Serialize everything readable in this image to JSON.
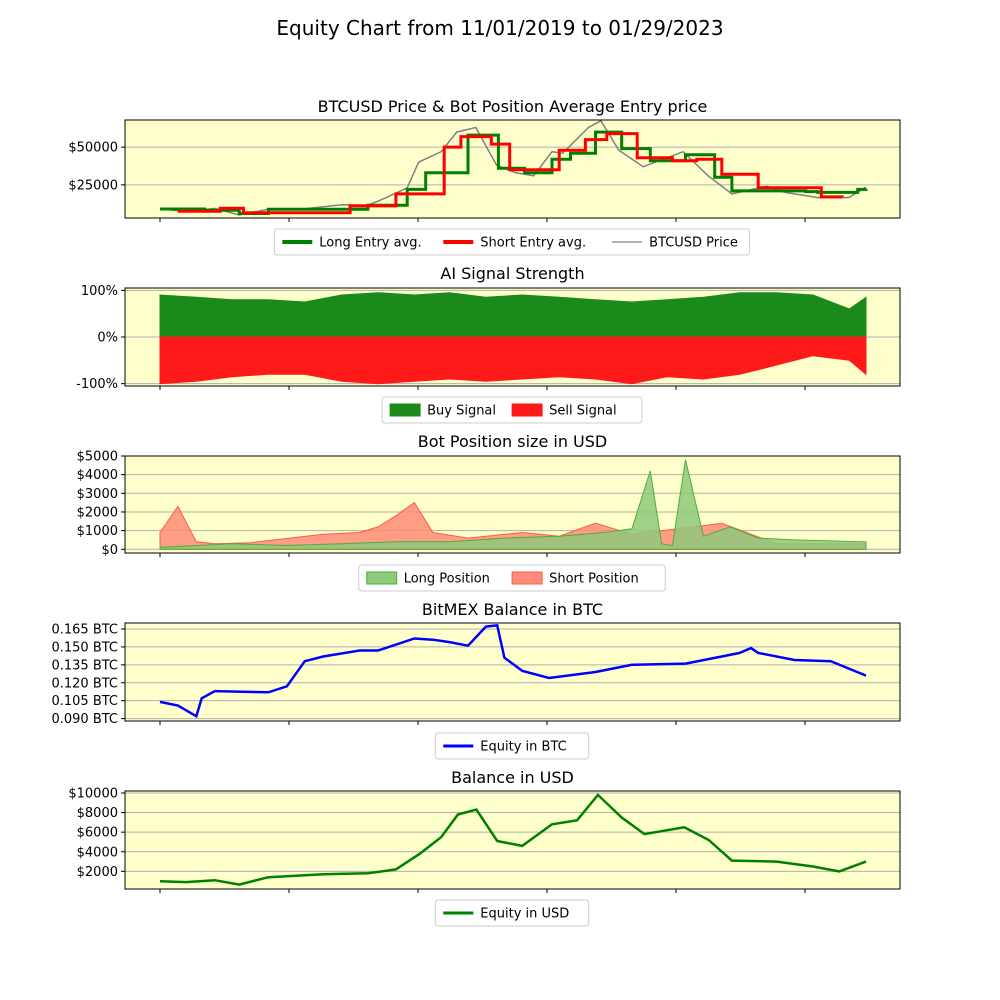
{
  "page_title": "Equity Chart from 11/01/2019 to 01/29/2023",
  "colors": {
    "panel_bg": "#ffffcc",
    "long": "#008000",
    "short": "#ff0000",
    "price": "#808080",
    "buy_fill": "#1a8a1a",
    "sell_fill": "#ff1a1a",
    "long_pos": "#8fc97a",
    "short_pos": "#ff8c78",
    "btc_equity": "#0000ff",
    "usd_equity": "#008000",
    "grid": "#b0b0b0"
  },
  "chart_data": [
    {
      "type": "line",
      "title": "BTCUSD Price & Bot Position Average Entry price",
      "xlabel": "",
      "ylabel": "",
      "x_range": [
        "11/01/2019",
        "01/29/2023"
      ],
      "ylim": [
        3000,
        68000
      ],
      "yticks": [
        25000,
        50000
      ],
      "ytick_labels": [
        "$25000",
        "$50000"
      ],
      "grid": "horizontal",
      "legend_placement": "below",
      "series": [
        {
          "name": "BTCUSD Price",
          "x": [
            "2019-11-01",
            "2019-12-15",
            "2020-02-01",
            "2020-03-13",
            "2020-05-01",
            "2020-07-01",
            "2020-09-01",
            "2020-10-15",
            "2020-11-15",
            "2020-12-20",
            "2021-01-08",
            "2021-02-15",
            "2021-03-13",
            "2021-04-14",
            "2021-05-19",
            "2021-06-20",
            "2021-07-20",
            "2021-08-20",
            "2021-09-07",
            "2021-10-20",
            "2021-11-10",
            "2021-12-10",
            "2022-01-20",
            "2022-03-28",
            "2022-05-09",
            "2022-06-18",
            "2022-08-15",
            "2022-09-15",
            "2022-11-09",
            "2022-12-31",
            "2023-01-29"
          ],
          "values": [
            9200,
            7200,
            9400,
            5000,
            8800,
            9200,
            11800,
            11500,
            16500,
            23000,
            40000,
            47000,
            60000,
            63000,
            38000,
            33000,
            31000,
            47000,
            46000,
            63000,
            67500,
            48000,
            37000,
            47000,
            31000,
            19000,
            24000,
            20000,
            16500,
            16500,
            23500
          ]
        },
        {
          "name": "Long Entry avg.",
          "x": [
            "2019-11-01",
            "2020-01-15",
            "2020-03-13",
            "2020-05-01",
            "2020-10-15",
            "2020-12-20",
            "2021-01-20",
            "2021-04-01",
            "2021-05-22",
            "2021-07-05",
            "2021-08-20",
            "2021-09-20",
            "2021-11-01",
            "2021-12-15",
            "2022-02-01",
            "2022-04-01",
            "2022-05-20",
            "2022-06-18",
            "2022-09-01",
            "2022-10-20",
            "2022-11-09",
            "2023-01-15",
            "2023-01-29"
          ],
          "values": [
            9000,
            8200,
            6000,
            8800,
            11500,
            22000,
            33000,
            58000,
            36000,
            33000,
            42000,
            46000,
            60000,
            49000,
            41000,
            45000,
            30000,
            21000,
            21000,
            20500,
            20000,
            22000,
            22500
          ]
        },
        {
          "name": "Short Entry avg.",
          "x": [
            "2019-12-01",
            "2020-02-10",
            "2020-03-20",
            "2020-09-15",
            "2020-12-01",
            "2021-02-20",
            "2021-03-20",
            "2021-05-10",
            "2021-06-10",
            "2021-09-01",
            "2021-10-15",
            "2021-11-20",
            "2022-01-10",
            "2022-03-10",
            "2022-04-20",
            "2022-06-01",
            "2022-08-01",
            "2022-11-15",
            "2022-12-20"
          ],
          "values": [
            7500,
            9500,
            6500,
            11000,
            19000,
            50000,
            57000,
            52000,
            35000,
            48000,
            55000,
            59000,
            43000,
            41000,
            42000,
            32000,
            23000,
            17000,
            16800
          ]
        }
      ]
    },
    {
      "type": "area",
      "title": "AI Signal Strength",
      "xlabel": "",
      "ylabel": "",
      "ylim": [
        -105,
        105
      ],
      "yticks": [
        -100,
        0,
        100
      ],
      "ytick_labels": [
        "-100%",
        "0%",
        "100%"
      ],
      "grid": "horizontal",
      "legend_placement": "below",
      "series": [
        {
          "name": "Buy Signal",
          "x": [
            "2019-11-01",
            "2020-01-01",
            "2020-03-01",
            "2020-05-01",
            "2020-07-01",
            "2020-09-01",
            "2020-11-01",
            "2021-01-01",
            "2021-03-01",
            "2021-05-01",
            "2021-07-01",
            "2021-09-01",
            "2021-11-01",
            "2022-01-01",
            "2022-03-01",
            "2022-05-01",
            "2022-07-01",
            "2022-09-01",
            "2022-11-01",
            "2023-01-01",
            "2023-01-29"
          ],
          "values": [
            90,
            85,
            80,
            80,
            75,
            90,
            95,
            90,
            95,
            85,
            90,
            85,
            80,
            75,
            80,
            85,
            95,
            95,
            90,
            60,
            85
          ]
        },
        {
          "name": "Sell Signal",
          "x": [
            "2019-11-01",
            "2020-01-01",
            "2020-03-01",
            "2020-05-01",
            "2020-07-01",
            "2020-09-01",
            "2020-11-01",
            "2021-01-01",
            "2021-03-01",
            "2021-05-01",
            "2021-07-01",
            "2021-09-01",
            "2021-11-01",
            "2022-01-01",
            "2022-03-01",
            "2022-05-01",
            "2022-07-01",
            "2022-09-01",
            "2022-11-01",
            "2023-01-01",
            "2023-01-29"
          ],
          "values": [
            -100,
            -95,
            -85,
            -80,
            -80,
            -95,
            -100,
            -95,
            -90,
            -95,
            -90,
            -85,
            -90,
            -100,
            -85,
            -90,
            -80,
            -60,
            -40,
            -50,
            -80
          ]
        }
      ]
    },
    {
      "type": "area",
      "title": "Bot Position size in USD",
      "xlabel": "",
      "ylabel": "",
      "ylim": [
        -200,
        5000
      ],
      "yticks": [
        0,
        1000,
        2000,
        3000,
        4000,
        5000
      ],
      "ytick_labels": [
        "$0",
        "$1000",
        "$2000",
        "$3000",
        "$4000",
        "$5000"
      ],
      "grid": "horizontal",
      "legend_placement": "below",
      "series": [
        {
          "name": "Long Position",
          "x": [
            "2019-11-01",
            "2020-03-01",
            "2020-06-01",
            "2020-09-01",
            "2020-12-01",
            "2021-03-01",
            "2021-06-01",
            "2021-09-01",
            "2021-11-15",
            "2022-01-01",
            "2022-02-01",
            "2022-02-20",
            "2022-03-10",
            "2022-04-01",
            "2022-05-01",
            "2022-06-15",
            "2022-08-01",
            "2022-10-01",
            "2023-01-29"
          ],
          "values": [
            100,
            300,
            200,
            300,
            400,
            400,
            600,
            700,
            900,
            1100,
            4200,
            300,
            200,
            4800,
            700,
            1200,
            600,
            500,
            400
          ]
        },
        {
          "name": "Short Position",
          "x": [
            "2019-11-01",
            "2019-12-01",
            "2020-01-01",
            "2020-02-01",
            "2020-04-01",
            "2020-08-01",
            "2020-10-01",
            "2020-11-01",
            "2020-12-01",
            "2021-01-01",
            "2021-02-01",
            "2021-04-01",
            "2021-07-01",
            "2021-09-01",
            "2021-11-01",
            "2022-01-01",
            "2022-04-15",
            "2022-06-01",
            "2022-09-01",
            "2022-11-01",
            "2023-01-29"
          ],
          "values": [
            900,
            2300,
            400,
            300,
            350,
            800,
            900,
            1200,
            1800,
            2500,
            900,
            600,
            900,
            700,
            1400,
            800,
            1200,
            1400,
            300,
            300,
            300
          ]
        }
      ]
    },
    {
      "type": "line",
      "title": "BitMEX Balance in BTC",
      "xlabel": "",
      "ylabel": "",
      "ylim": [
        0.088,
        0.17
      ],
      "yticks": [
        0.09,
        0.105,
        0.12,
        0.135,
        0.15,
        0.165
      ],
      "ytick_labels": [
        "0.090 BTC",
        "0.105 BTC",
        "0.120 BTC",
        "0.135 BTC",
        "0.150 BTC",
        "0.165 BTC"
      ],
      "grid": "horizontal",
      "legend_placement": "below",
      "series": [
        {
          "name": "Equity in BTC",
          "x": [
            "2019-11-01",
            "2019-12-01",
            "2020-01-01",
            "2020-01-10",
            "2020-02-01",
            "2020-05-01",
            "2020-06-01",
            "2020-07-01",
            "2020-08-01",
            "2020-10-01",
            "2020-11-01",
            "2021-01-01",
            "2021-02-01",
            "2021-03-01",
            "2021-04-01",
            "2021-05-01",
            "2021-05-20",
            "2021-06-01",
            "2021-07-01",
            "2021-08-15",
            "2021-11-01",
            "2022-01-01",
            "2022-04-01",
            "2022-06-01",
            "2022-07-01",
            "2022-07-20",
            "2022-08-01",
            "2022-10-01",
            "2022-12-01",
            "2023-01-29"
          ],
          "values": [
            0.104,
            0.101,
            0.092,
            0.107,
            0.113,
            0.112,
            0.117,
            0.138,
            0.142,
            0.147,
            0.147,
            0.157,
            0.156,
            0.154,
            0.151,
            0.167,
            0.168,
            0.141,
            0.13,
            0.124,
            0.129,
            0.135,
            0.136,
            0.142,
            0.145,
            0.149,
            0.145,
            0.139,
            0.138,
            0.126
          ]
        }
      ]
    },
    {
      "type": "line",
      "title": "Balance in USD",
      "xlabel": "",
      "ylabel": "",
      "ylim": [
        200,
        10200
      ],
      "yticks": [
        2000,
        4000,
        6000,
        8000,
        10000
      ],
      "ytick_labels": [
        "$2000",
        "$4000",
        "$6000",
        "$8000",
        "$10000"
      ],
      "grid": "horizontal",
      "legend_placement": "below",
      "series": [
        {
          "name": "Equity in USD",
          "x": [
            "2019-11-01",
            "2019-12-15",
            "2020-02-01",
            "2020-03-13",
            "2020-05-01",
            "2020-08-01",
            "2020-10-15",
            "2020-12-01",
            "2021-01-10",
            "2021-02-15",
            "2021-03-15",
            "2021-04-15",
            "2021-05-20",
            "2021-07-01",
            "2021-08-20",
            "2021-10-01",
            "2021-11-05",
            "2021-12-15",
            "2022-01-22",
            "2022-03-30",
            "2022-05-10",
            "2022-06-18",
            "2022-09-01",
            "2022-11-01",
            "2022-12-15",
            "2023-01-29"
          ],
          "values": [
            1000,
            900,
            1100,
            650,
            1400,
            1700,
            1800,
            2200,
            3800,
            5500,
            7800,
            8300,
            5100,
            4600,
            6800,
            7200,
            9800,
            7500,
            5800,
            6500,
            5200,
            3100,
            3000,
            2500,
            2000,
            3000
          ]
        }
      ]
    }
  ]
}
